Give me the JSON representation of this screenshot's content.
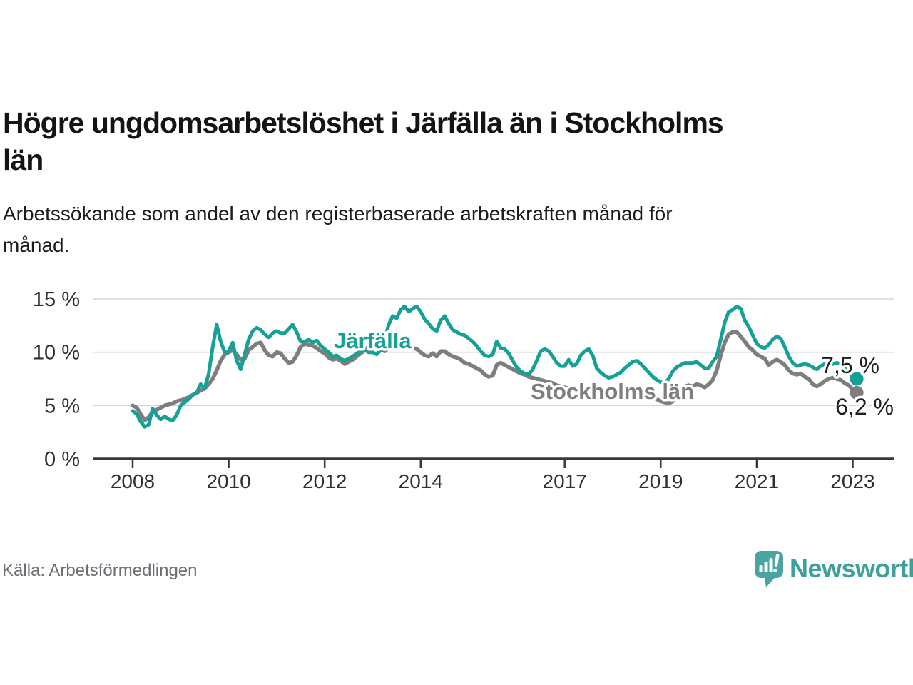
{
  "header": {
    "title_lines": [
      "Högre ungdomsarbetslöshet i Järfälla än i Stockholms",
      "län"
    ],
    "subtitle_lines": [
      "Arbetssökande som andel av den registerbaserade arbetskraften månad för",
      "månad."
    ]
  },
  "footer": {
    "source": "Källa: Arbetsförmedlingen",
    "brand": "Newsworthy"
  },
  "colors": {
    "jarfalla": "#17a096",
    "stockholm": "#7e7e7e",
    "grid": "#d6d6d6",
    "axis": "#383838",
    "axis_text": "#2f2f2f",
    "value_text": "#1f1f1f",
    "logo_teal": "#48a5a1",
    "logo_text": "#3da09c"
  },
  "chart_data": {
    "type": "line",
    "title": "Högre ungdomsarbetslöshet i Järfälla än i Stockholms län",
    "subtitle": "Arbetssökande som andel av den registerbaserade arbetskraften månad för månad.",
    "unit": "%",
    "frequency": "monthly",
    "x_start_year": 2008,
    "x_start_month": 1,
    "x_end_year": 2023,
    "x_end_month": 2,
    "grid": "horizontal-only",
    "y_axis": {
      "tick_values": [
        0,
        5,
        10,
        15
      ],
      "tick_labels": [
        "0 %",
        "5 %",
        "10 %",
        "15 %"
      ],
      "ylim": [
        0,
        15.5
      ]
    },
    "x_axis": {
      "tick_years": [
        2008,
        2010,
        2012,
        2014,
        2017,
        2019,
        2021,
        2023
      ]
    },
    "series": [
      {
        "name": "Stockholms län",
        "color": "#7e7e7e",
        "end_value": 6.2,
        "end_label": "6,2 %",
        "values": [
          5.0,
          4.8,
          4.2,
          3.6,
          3.9,
          4.4,
          4.6,
          4.8,
          5.0,
          5.1,
          5.2,
          5.4,
          5.5,
          5.6,
          5.8,
          6.0,
          6.2,
          6.4,
          6.6,
          7.0,
          7.5,
          8.3,
          9.2,
          9.8,
          10.0,
          10.2,
          9.8,
          9.3,
          9.4,
          10.2,
          10.5,
          10.8,
          10.9,
          10.2,
          9.7,
          9.6,
          10.0,
          9.9,
          9.4,
          9.0,
          9.1,
          9.7,
          10.5,
          10.8,
          10.7,
          10.6,
          10.4,
          10.1,
          9.9,
          9.5,
          9.3,
          9.4,
          9.2,
          8.9,
          9.1,
          9.3,
          9.6,
          9.9,
          10.2,
          10.5,
          10.7,
          10.6,
          10.3,
          10.1,
          10.4,
          10.5,
          10.4,
          10.4,
          10.5,
          10.4,
          10.4,
          10.3,
          10.0,
          9.7,
          9.6,
          9.9,
          9.6,
          10.1,
          10.1,
          9.8,
          9.6,
          9.5,
          9.3,
          9.0,
          8.9,
          8.7,
          8.5,
          8.3,
          7.9,
          7.7,
          7.8,
          8.8,
          9.0,
          8.8,
          8.6,
          8.4,
          8.2,
          8.0,
          7.9,
          7.7,
          7.6,
          7.5,
          7.4,
          7.3,
          7.2,
          7.1,
          6.9,
          6.8,
          6.7,
          6.6,
          6.5,
          6.4,
          6.4,
          6.5,
          6.6,
          6.5,
          6.4,
          6.3,
          6.2,
          6.1,
          6.1,
          6.0,
          6.0,
          6.0,
          6.0,
          6.1,
          6.2,
          6.1,
          6.0,
          5.9,
          5.8,
          5.6,
          5.4,
          5.3,
          5.2,
          5.4,
          5.8,
          6.3,
          6.8,
          6.9,
          6.8,
          7.0,
          6.9,
          6.7,
          7.0,
          7.4,
          8.3,
          9.7,
          10.9,
          11.7,
          11.9,
          11.9,
          11.5,
          11.0,
          10.5,
          10.2,
          9.8,
          9.6,
          9.4,
          8.8,
          9.1,
          9.3,
          9.1,
          8.8,
          8.3,
          8.0,
          7.9,
          8.0,
          7.7,
          7.5,
          7.0,
          6.8,
          7.0,
          7.3,
          7.5,
          7.6,
          7.5,
          7.4,
          7.1,
          6.9,
          6.5,
          6.2
        ]
      },
      {
        "name": "Järfälla",
        "color": "#17a096",
        "end_value": 7.5,
        "end_label": "7,5 %",
        "values": [
          4.5,
          4.2,
          3.5,
          3.0,
          3.2,
          4.7,
          4.1,
          3.7,
          4.0,
          3.7,
          3.6,
          4.1,
          5.0,
          5.3,
          5.6,
          6.0,
          6.2,
          7.0,
          6.6,
          8.0,
          10.5,
          12.6,
          11.0,
          10.0,
          10.1,
          10.9,
          9.2,
          8.4,
          9.8,
          11.2,
          12.0,
          12.3,
          12.1,
          11.7,
          11.4,
          11.8,
          12.0,
          11.8,
          11.8,
          12.2,
          12.6,
          11.9,
          11.0,
          11.0,
          11.2,
          10.9,
          11.1,
          10.6,
          10.3,
          10.0,
          9.6,
          9.7,
          9.4,
          9.2,
          9.4,
          9.6,
          9.9,
          10.1,
          10.2,
          10.0,
          10.0,
          9.8,
          10.2,
          11.2,
          12.6,
          13.4,
          13.2,
          14.0,
          14.3,
          13.8,
          14.1,
          14.3,
          13.8,
          13.1,
          12.7,
          12.2,
          12.0,
          13.0,
          13.4,
          12.7,
          12.1,
          11.9,
          11.7,
          11.6,
          11.3,
          11.0,
          10.6,
          10.1,
          9.7,
          9.6,
          9.8,
          11.0,
          10.4,
          10.3,
          9.9,
          9.2,
          8.6,
          8.2,
          8.0,
          7.9,
          8.4,
          9.2,
          10.1,
          10.3,
          10.1,
          9.6,
          9.0,
          8.7,
          8.7,
          9.3,
          8.7,
          8.9,
          9.7,
          10.1,
          10.3,
          9.7,
          8.5,
          8.1,
          7.8,
          7.6,
          7.7,
          7.9,
          8.1,
          8.5,
          8.8,
          9.1,
          9.2,
          8.9,
          8.5,
          8.1,
          7.7,
          7.4,
          7.2,
          7.1,
          7.5,
          8.2,
          8.6,
          8.8,
          9.0,
          9.0,
          9.0,
          9.1,
          8.8,
          8.5,
          8.5,
          9.1,
          9.6,
          11.2,
          12.8,
          13.8,
          14.0,
          14.3,
          14.1,
          13.0,
          12.4,
          11.6,
          10.8,
          10.5,
          10.4,
          10.7,
          11.2,
          11.5,
          11.3,
          10.5,
          9.6,
          9.0,
          8.7,
          8.8,
          8.9,
          8.8,
          8.6,
          8.4,
          8.7,
          8.9,
          9.0,
          8.9,
          9.0,
          8.9,
          8.5,
          8.1,
          7.7,
          7.5
        ]
      }
    ]
  }
}
